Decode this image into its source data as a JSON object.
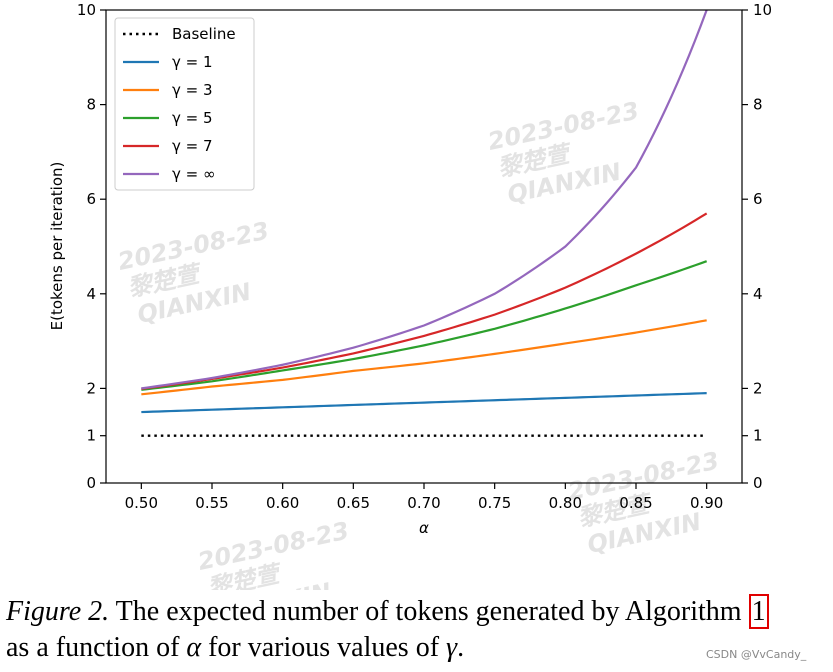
{
  "chart_data": {
    "type": "line",
    "xlabel": "α",
    "ylabel": "E(tokens per iteration)",
    "xlim": [
      0.475,
      0.925
    ],
    "ylim": [
      0,
      10
    ],
    "xticks": [
      0.5,
      0.55,
      0.6,
      0.65,
      0.7,
      0.75,
      0.8,
      0.85,
      0.9
    ],
    "xtick_labels": [
      "0.50",
      "0.55",
      "0.60",
      "0.65",
      "0.70",
      "0.75",
      "0.80",
      "0.85",
      "0.90"
    ],
    "yticks": [
      0,
      1,
      2,
      4,
      6,
      8,
      10
    ],
    "ytick_labels": [
      "0",
      "1",
      "2",
      "4",
      "6",
      "8",
      "10"
    ],
    "right_axis_ticks": true,
    "grid": false,
    "legend_position": "top-left",
    "x": [
      0.5,
      0.55,
      0.6,
      0.65,
      0.7,
      0.75,
      0.8,
      0.85,
      0.9
    ],
    "series": [
      {
        "name": "Baseline",
        "color": "#000000",
        "style": "dotted",
        "values": [
          1,
          1,
          1,
          1,
          1,
          1,
          1,
          1,
          1
        ]
      },
      {
        "name": "γ = 1",
        "color": "#1f77b4",
        "style": "solid",
        "values": [
          1.5,
          1.55,
          1.6,
          1.65,
          1.7,
          1.75,
          1.8,
          1.85,
          1.9
        ]
      },
      {
        "name": "γ = 3",
        "color": "#ff7f0e",
        "style": "solid",
        "values": [
          1.875,
          2.04,
          2.18,
          2.37,
          2.53,
          2.73,
          2.95,
          3.18,
          3.44
        ]
      },
      {
        "name": "γ = 5",
        "color": "#2ca02c",
        "style": "solid",
        "values": [
          1.97,
          2.15,
          2.38,
          2.62,
          2.91,
          3.26,
          3.69,
          4.18,
          4.69
        ]
      },
      {
        "name": "γ = 7",
        "color": "#d62728",
        "style": "solid",
        "values": [
          1.99,
          2.2,
          2.44,
          2.74,
          3.11,
          3.56,
          4.13,
          4.85,
          5.7
        ]
      },
      {
        "name": "γ = ∞",
        "color": "#9467bd",
        "style": "solid",
        "values": [
          2.0,
          2.22,
          2.5,
          2.86,
          3.33,
          4.0,
          5.0,
          6.67,
          10.0
        ]
      }
    ]
  },
  "caption": {
    "lead": "Figure 2.",
    "text": " The expected number of tokens generated by Algorithm ",
    "ref": "1",
    "line2_a": "as a function of ",
    "alpha": "α",
    "line2_b": " for various values of ",
    "gamma": "γ",
    "line2_c": "."
  },
  "watermarks": [
    {
      "date": "2023-08-23",
      "name": "黎楚萱",
      "org": "QIANXIN"
    }
  ],
  "credit": "CSDN @VvCandy_"
}
